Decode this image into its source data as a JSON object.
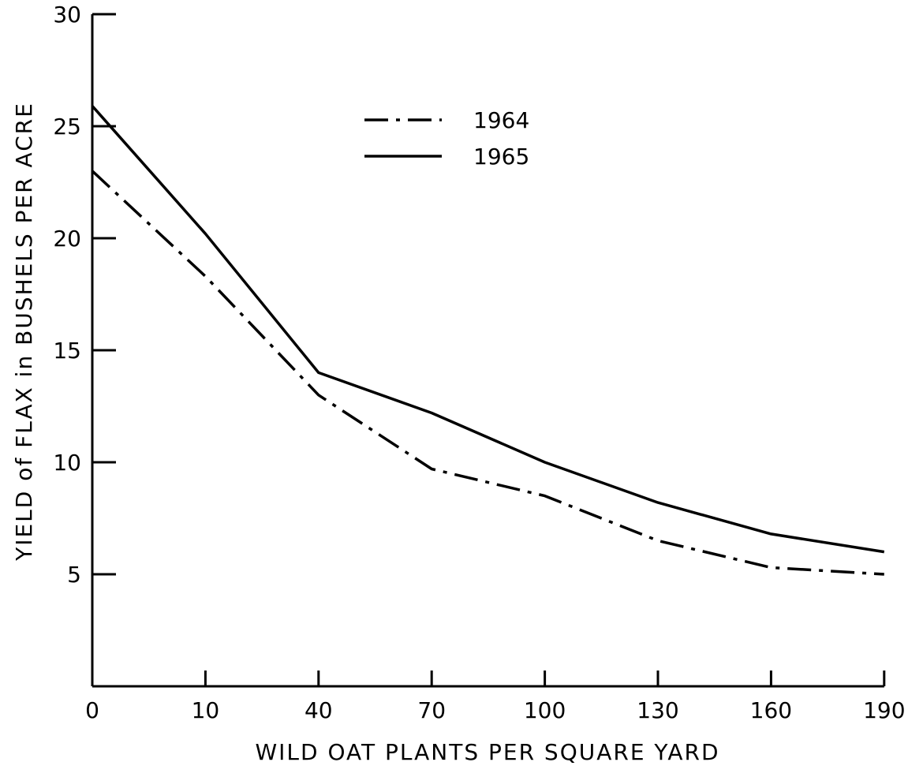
{
  "chart_data": {
    "type": "line",
    "xlabel": "WILD OAT PLANTS PER SQUARE YARD",
    "ylabel": "YIELD of FLAX in BUSHELS PER ACRE",
    "x": [
      0,
      10,
      40,
      70,
      100,
      130,
      160,
      190
    ],
    "x_tick_labels": [
      "0",
      "10",
      "40",
      "70",
      "100",
      "130",
      "160",
      "190"
    ],
    "y_ticks": [
      5,
      10,
      15,
      20,
      25,
      30
    ],
    "y_tick_labels": [
      "5",
      "10",
      "15",
      "20",
      "25",
      "30"
    ],
    "ylim": [
      0,
      30
    ],
    "grid": false,
    "legend_position": "top-center",
    "series": [
      {
        "name": "1964",
        "line_style": "dash-dot",
        "values": [
          23,
          18.3,
          13,
          9.7,
          8.5,
          6.5,
          5.3,
          5
        ]
      },
      {
        "name": "1965",
        "line_style": "solid",
        "values": [
          25.9,
          20.2,
          14,
          12.2,
          10,
          8.2,
          6.8,
          6
        ]
      }
    ],
    "colors": {
      "line": "#000000",
      "background": "#ffffff"
    }
  }
}
